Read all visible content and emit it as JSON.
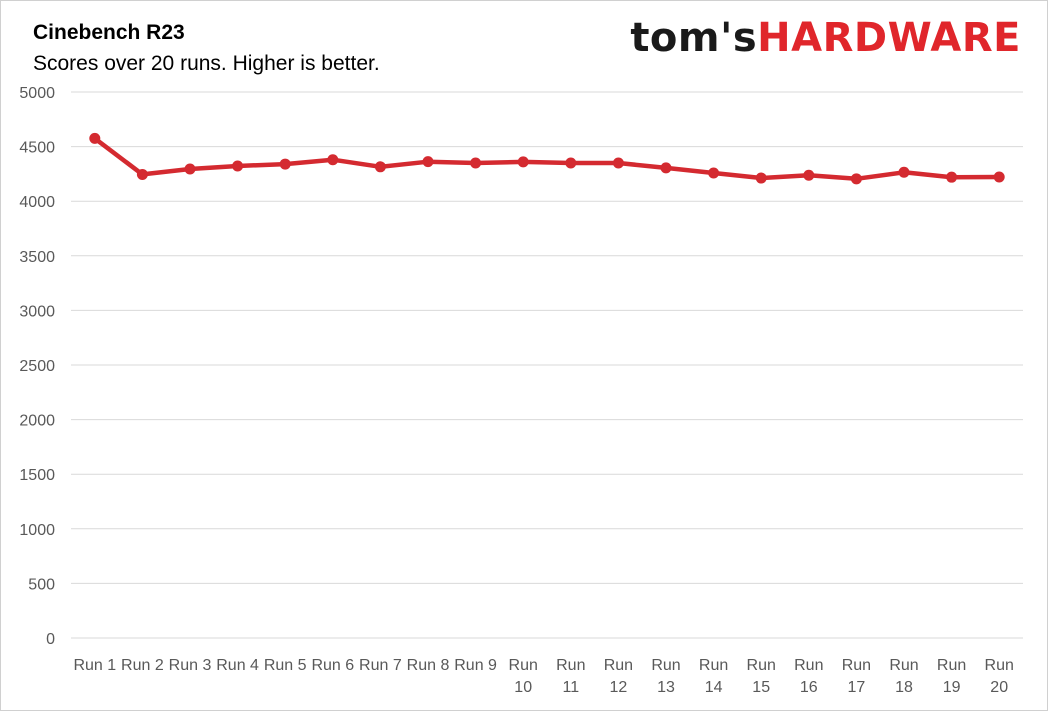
{
  "chart_data": {
    "type": "line",
    "title": "Cinebench R23",
    "subtitle": "Scores over 20 runs. Higher is better.",
    "xlabel": "",
    "ylabel": "",
    "categories": [
      [
        "Run 1"
      ],
      [
        "Run 2"
      ],
      [
        "Run 3"
      ],
      [
        "Run 4"
      ],
      [
        "Run 5"
      ],
      [
        "Run 6"
      ],
      [
        "Run 7"
      ],
      [
        "Run 8"
      ],
      [
        "Run 9"
      ],
      [
        "Run",
        "10"
      ],
      [
        "Run",
        "11"
      ],
      [
        "Run",
        "12"
      ],
      [
        "Run",
        "13"
      ],
      [
        "Run",
        "14"
      ],
      [
        "Run",
        "15"
      ],
      [
        "Run",
        "16"
      ],
      [
        "Run",
        "17"
      ],
      [
        "Run",
        "18"
      ],
      [
        "Run",
        "19"
      ],
      [
        "Run",
        "20"
      ]
    ],
    "series": [
      {
        "values": [
          4575,
          4245,
          4295,
          4322,
          4340,
          4380,
          4315,
          4362,
          4350,
          4360,
          4350,
          4350,
          4305,
          4258,
          4212,
          4238,
          4205,
          4265,
          4220,
          4222
        ],
        "color": "#d42a30"
      }
    ],
    "ylim": [
      0,
      5000
    ],
    "yticks": [
      0,
      500,
      1000,
      1500,
      2000,
      2500,
      3000,
      3500,
      4000,
      4500,
      5000
    ],
    "grid": true,
    "legend": "none"
  },
  "brand": {
    "part1": "tom's",
    "part2": "HARDWARE",
    "color_dark": "#1a1a1a",
    "color_red": "#e0262b"
  },
  "colors": {
    "gridline": "#d9d9d9",
    "axis_text": "#595959"
  }
}
